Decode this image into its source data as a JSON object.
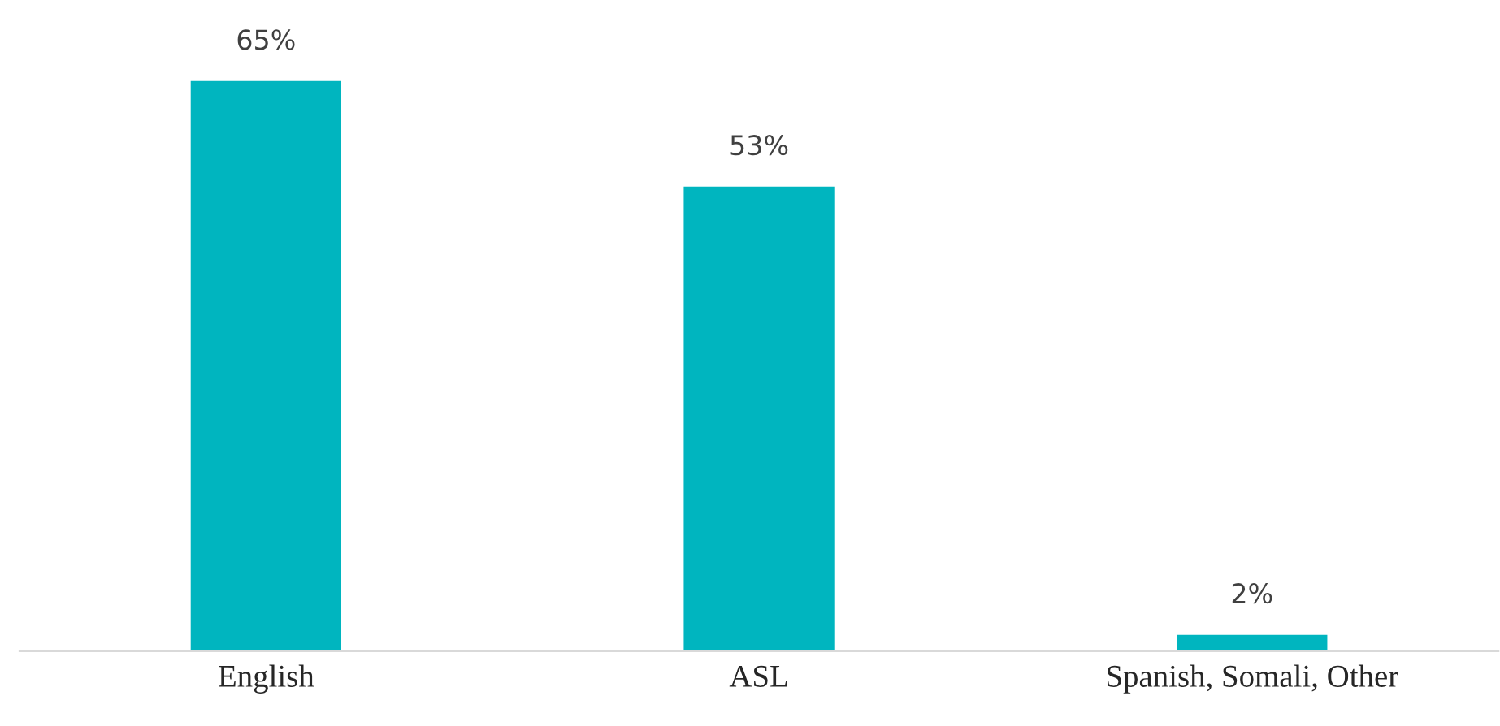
{
  "chart_data": {
    "type": "bar",
    "categories": [
      "English",
      "ASL",
      "Spanish, Somali, Other"
    ],
    "values": [
      65,
      53,
      2
    ],
    "value_labels": [
      "65%",
      "53%",
      "2%"
    ],
    "color": "#00b5bf",
    "grid": false,
    "legend": false
  }
}
